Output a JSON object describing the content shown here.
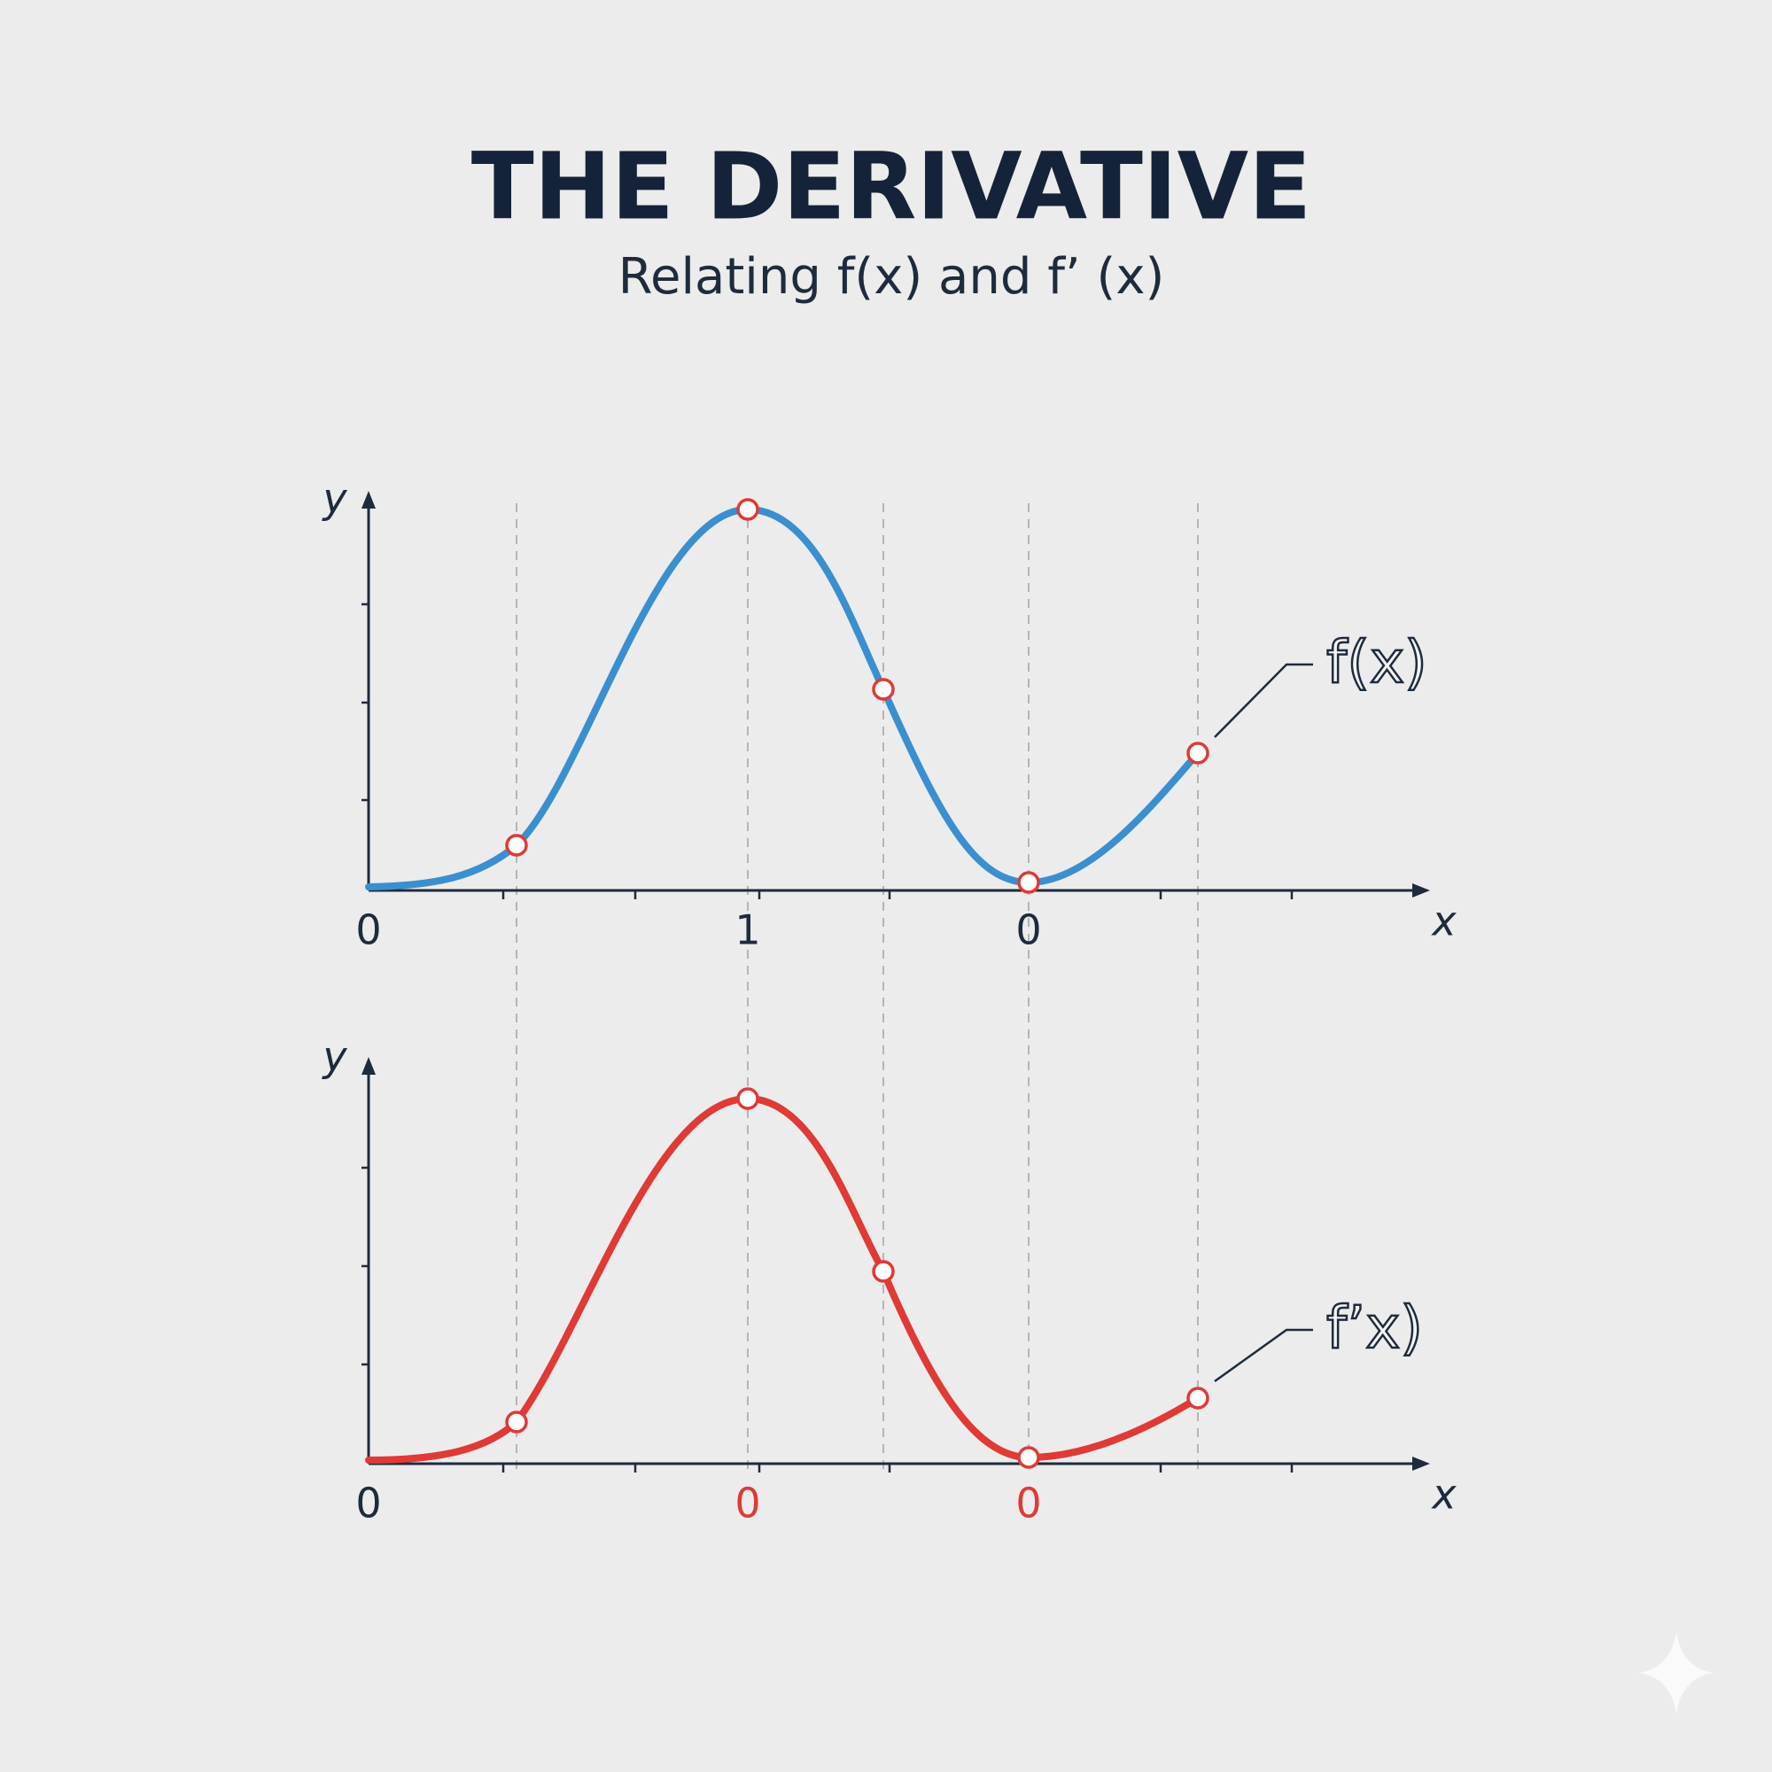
{
  "header": {
    "title": "THE DERIVATIVE",
    "subtitle": "Relating f(x) and f’ (x)"
  },
  "panels": [
    {
      "y_label": "y",
      "x_label": "x",
      "curve_label": "f(x)",
      "tick_labels": [
        "0",
        "1",
        "0"
      ]
    },
    {
      "y_label": "y",
      "x_label": "x",
      "curve_label": "f’x)",
      "tick_labels": [
        "0",
        "0",
        "0"
      ]
    }
  ]
}
